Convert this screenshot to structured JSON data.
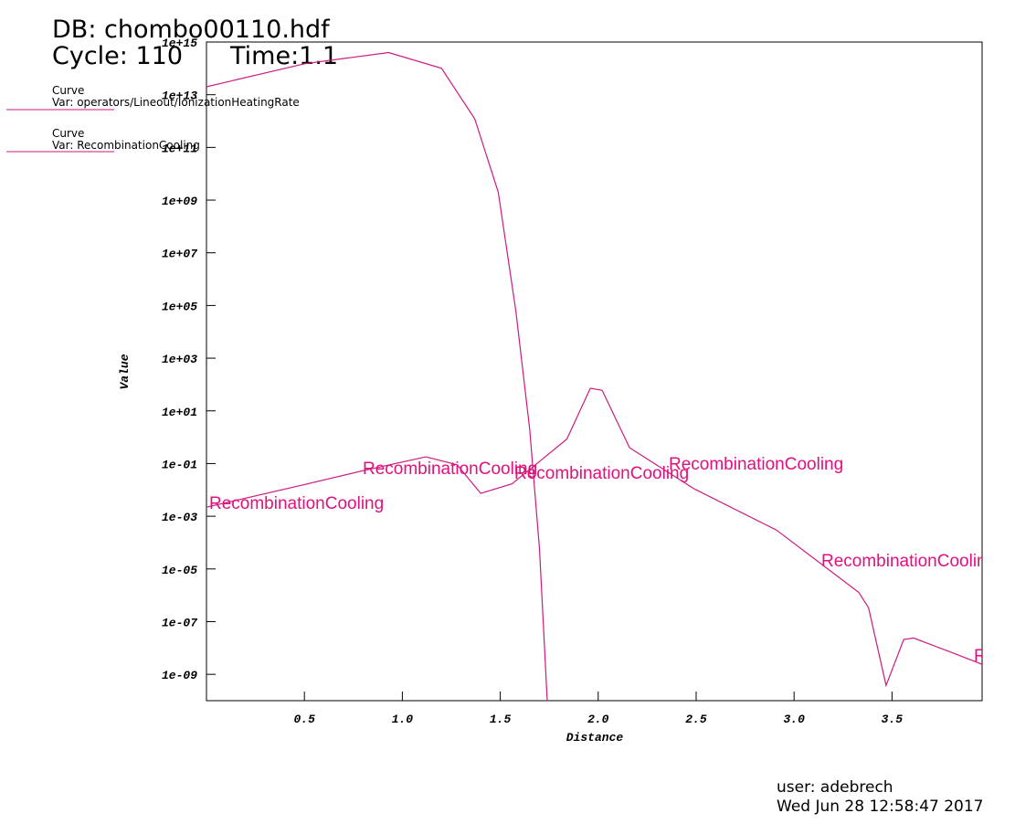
{
  "chart_data": {
    "type": "line",
    "title": "DB: chombo00110.hdf",
    "cycle": "Cycle: 110",
    "time": "Time:1.1",
    "xlabel": "Distance",
    "ylabel": "Value",
    "ylog": true,
    "xlim": [
      0,
      3.96
    ],
    "ylim": [
      1e-10,
      1000000000000000.0
    ],
    "xticks": [
      0.5,
      {
        "value": 1,
        "label": "1.0"
      },
      1.5,
      {
        "value": 2,
        "label": "2.0"
      },
      2.5,
      {
        "value": 3,
        "label": "3.0"
      },
      3.5
    ],
    "yticks": [
      {
        "value": 1000000000000000.0,
        "label": "1e+15"
      },
      {
        "value": 10000000000000.0,
        "label": "1e+13"
      },
      {
        "value": 100000000000.0,
        "label": "1e+11"
      },
      {
        "value": 1000000000.0,
        "label": "1e+09"
      },
      {
        "value": 10000000.0,
        "label": "1e+07"
      },
      {
        "value": 100000.0,
        "label": "1e+05"
      },
      {
        "value": 1000.0,
        "label": "1e+03"
      },
      {
        "value": 10,
        "label": "1e+01"
      },
      {
        "value": 0.1,
        "label": "1e-01"
      },
      {
        "value": 0.001,
        "label": "1e-03"
      },
      {
        "value": 1e-05,
        "label": "1e-05"
      },
      {
        "value": 1e-07,
        "label": "1e-07"
      },
      {
        "value": 1e-09,
        "label": "1e-09"
      }
    ],
    "legend_headings": [
      "Curve",
      "Curve"
    ],
    "series": [
      {
        "name": "Var: operators/Lineout/IonizationHeatingRate",
        "color": "#cc1a80",
        "x": [
          0,
          0.5,
          0.93,
          1.2,
          1.37,
          1.49,
          1.58,
          1.65,
          1.7,
          1.74
        ],
        "values": [
          20000000000000.0,
          150000000000000.0,
          400000000000000.0,
          100000000000000.0,
          1200000000000.0,
          2000000000.0,
          60000.0,
          2,
          6e-05,
          1e-10
        ]
      },
      {
        "name": "Var: RecombinationCooling",
        "color": "#cc1a80",
        "x": [
          0,
          0.5,
          0.8,
          1.12,
          1.28,
          1.4,
          1.56,
          1.7,
          1.84,
          1.96,
          2.02,
          2.16,
          2.49,
          2.91,
          3.33,
          3.38,
          3.47,
          3.56,
          3.61,
          3.79,
          3.96
        ],
        "values": [
          0.0022,
          0.016,
          0.054,
          0.18,
          0.09,
          0.0074,
          0.017,
          0.12,
          0.85,
          72,
          60,
          0.4,
          0.011,
          0.0003,
          1.3e-06,
          3.4e-07,
          3.8e-10,
          2.1e-08,
          2.4e-08,
          7.4e-09,
          2.4e-09
        ]
      }
    ],
    "curve_labels": [
      "RecombinationCooling",
      "RecombinationCooling",
      "RecombinationCooling",
      "RecombinationCooling",
      "RecombinationCooling",
      "RecombinationCooling"
    ],
    "user": "user: adebrech",
    "date": "Wed Jun 28 12:58:47 2017"
  }
}
